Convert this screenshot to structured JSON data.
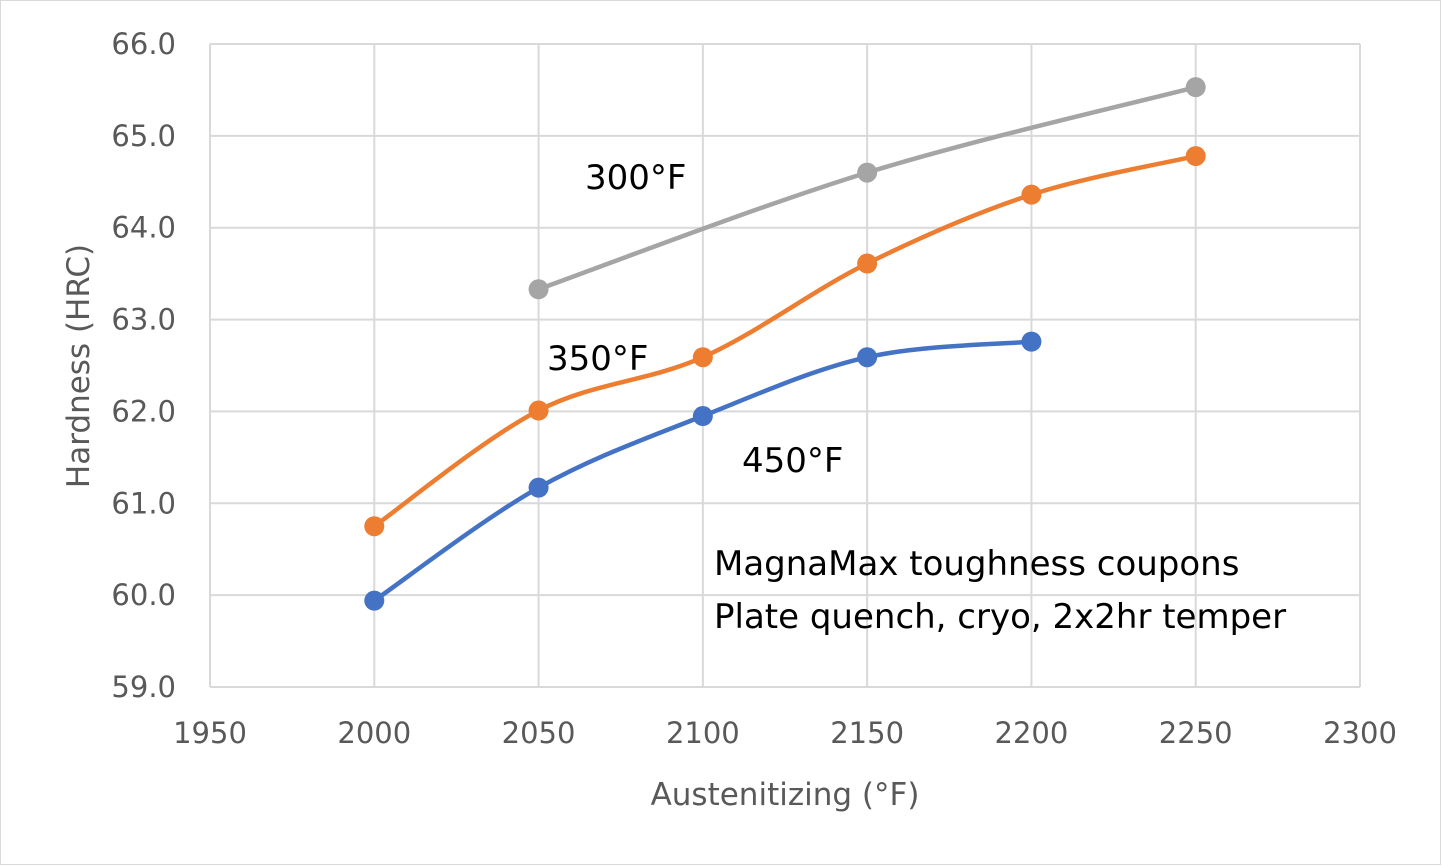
{
  "chart_data": {
    "type": "line",
    "title": "",
    "xlabel": "Austenitizing (°F)",
    "ylabel": "Hardness (HRC)",
    "xlim": [
      1950,
      2300
    ],
    "ylim": [
      59.0,
      66.0
    ],
    "x_ticks": [
      "1950",
      "2000",
      "2050",
      "2100",
      "2150",
      "2200",
      "2250",
      "2300"
    ],
    "y_ticks": [
      "59.0",
      "60.0",
      "61.0",
      "62.0",
      "63.0",
      "64.0",
      "65.0",
      "66.0"
    ],
    "grid": true,
    "legend": "none",
    "series": [
      {
        "name": "300°F",
        "color": "#a5a5a5",
        "x": [
          2050,
          2150,
          2250
        ],
        "y": [
          63.33,
          64.6,
          65.53
        ]
      },
      {
        "name": "350°F",
        "color": "#ed7d31",
        "x": [
          2000,
          2050,
          2100,
          2150,
          2200,
          2250
        ],
        "y": [
          60.75,
          62.01,
          62.59,
          63.61,
          64.36,
          64.78
        ]
      },
      {
        "name": "450°F",
        "color": "#4472c4",
        "x": [
          2000,
          2050,
          2100,
          2150,
          2200
        ],
        "y": [
          59.94,
          61.17,
          61.95,
          62.59,
          62.76
        ]
      }
    ],
    "series_labels": [
      "300°F",
      "350°F",
      "450°F"
    ],
    "annotation": [
      "MagnaMax toughness coupons",
      "Plate quench, cryo, 2x2hr temper"
    ]
  }
}
